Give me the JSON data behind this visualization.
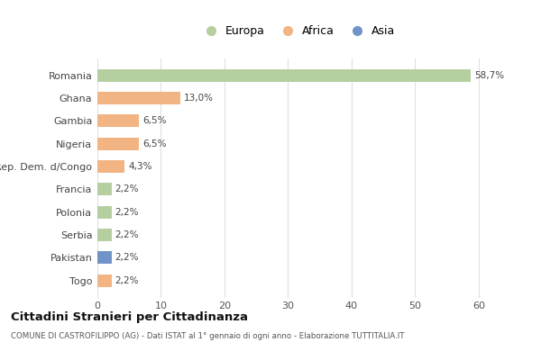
{
  "countries": [
    "Romania",
    "Ghana",
    "Gambia",
    "Nigeria",
    "Rep. Dem. d/Congo",
    "Francia",
    "Polonia",
    "Serbia",
    "Pakistan",
    "Togo"
  ],
  "values": [
    58.7,
    13.0,
    6.5,
    6.5,
    4.3,
    2.2,
    2.2,
    2.2,
    2.2,
    2.2
  ],
  "labels": [
    "58,7%",
    "13,0%",
    "6,5%",
    "6,5%",
    "4,3%",
    "2,2%",
    "2,2%",
    "2,2%",
    "2,2%",
    "2,2%"
  ],
  "continents": [
    "Europa",
    "Africa",
    "Africa",
    "Africa",
    "Africa",
    "Europa",
    "Europa",
    "Europa",
    "Asia",
    "Africa"
  ],
  "colors": {
    "Europa": "#b5cfa0",
    "Africa": "#f2b482",
    "Asia": "#7093c8"
  },
  "title": "Cittadini Stranieri per Cittadinanza",
  "subtitle": "COMUNE DI CASTROFILIPPO (AG) - Dati ISTAT al 1° gennaio di ogni anno - Elaborazione TUTTITALIA.IT",
  "xlim": [
    0,
    63
  ],
  "xticks": [
    0,
    10,
    20,
    30,
    40,
    50,
    60
  ],
  "background_color": "#ffffff",
  "grid_color": "#e0e0e0"
}
